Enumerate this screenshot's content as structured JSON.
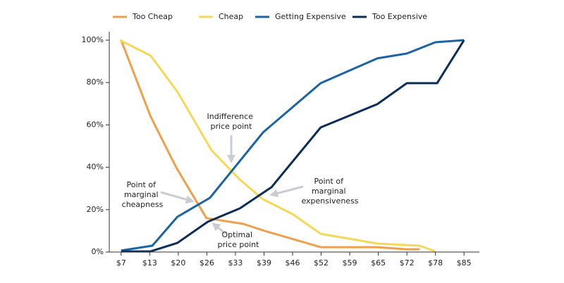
{
  "chart_data": {
    "type": "line",
    "legend": "top",
    "xlim": [
      3.8,
      88
    ],
    "ylim": [
      0,
      104
    ],
    "xticks": [
      {
        "value": 6.5,
        "label": "$7"
      },
      {
        "value": 13,
        "label": "$13"
      },
      {
        "value": 19.5,
        "label": "$20"
      },
      {
        "value": 26,
        "label": "$26"
      },
      {
        "value": 32.5,
        "label": "$33"
      },
      {
        "value": 39,
        "label": "$39"
      },
      {
        "value": 45.5,
        "label": "$46"
      },
      {
        "value": 52,
        "label": "$52"
      },
      {
        "value": 58.5,
        "label": "$59"
      },
      {
        "value": 65,
        "label": "$65"
      },
      {
        "value": 71.5,
        "label": "$72"
      },
      {
        "value": 78,
        "label": "$78"
      },
      {
        "value": 84.5,
        "label": "$85"
      }
    ],
    "yticks": [
      {
        "value": 0,
        "label": "0%"
      },
      {
        "value": 20,
        "label": "20%"
      },
      {
        "value": 40,
        "label": "40%"
      },
      {
        "value": 60,
        "label": "60%"
      },
      {
        "value": 80,
        "label": "80%"
      },
      {
        "value": 100,
        "label": "100%"
      }
    ],
    "series": [
      {
        "name": "Too Cheap",
        "color": "#f0a04b",
        "x": [
          6.5,
          13.2,
          19,
          25.9,
          34.3,
          39.1,
          51.9,
          64.8,
          71.5,
          74.4
        ],
        "values": [
          100,
          64,
          40,
          16,
          13.3,
          10,
          2.3,
          2.3,
          1.3,
          1.3
        ]
      },
      {
        "name": "Cheap",
        "color": "#f6d858",
        "x": [
          6.2,
          13.2,
          19.3,
          27,
          33.5,
          38.8,
          45.5,
          51.9,
          64.8,
          71.5,
          74.4,
          78
        ],
        "values": [
          100,
          92.7,
          75.7,
          48.2,
          34.2,
          24.9,
          17.9,
          8.6,
          4,
          3.3,
          3,
          0.3
        ]
      },
      {
        "name": "Getting Expensive",
        "color": "#1b64a4",
        "x": [
          6.5,
          13.6,
          19.3,
          26.7,
          38.8,
          51.9,
          64.8,
          71.5,
          78,
          84.5
        ],
        "values": [
          0.7,
          3,
          16.6,
          25.6,
          56.5,
          79.7,
          91.4,
          93.7,
          99,
          100
        ]
      },
      {
        "name": "Too Expensive",
        "color": "#0c2d57",
        "x": [
          6.5,
          13.2,
          19.3,
          26.2,
          33.5,
          40.7,
          51.9,
          64.8,
          71.5,
          78.4,
          84.5
        ],
        "values": [
          0.3,
          0.3,
          4.3,
          14.3,
          20.6,
          30.6,
          58.8,
          69.8,
          79.7,
          79.7,
          100
        ]
      }
    ],
    "annotations": [
      {
        "lines": [
          "Indifference",
          "price point"
        ]
      },
      {
        "lines": [
          "Point of",
          "marginal",
          "cheapness"
        ]
      },
      {
        "lines": [
          "Point of",
          "marginal",
          "expensiveness"
        ]
      },
      {
        "lines": [
          "Optimal",
          "price point"
        ]
      }
    ]
  }
}
